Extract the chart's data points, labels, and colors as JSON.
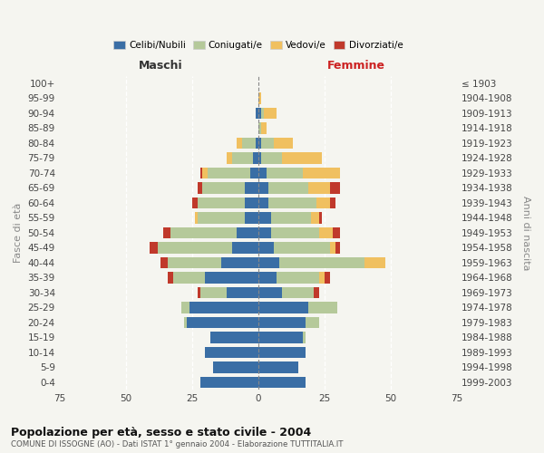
{
  "age_groups": [
    "0-4",
    "5-9",
    "10-14",
    "15-19",
    "20-24",
    "25-29",
    "30-34",
    "35-39",
    "40-44",
    "45-49",
    "50-54",
    "55-59",
    "60-64",
    "65-69",
    "70-74",
    "75-79",
    "80-84",
    "85-89",
    "90-94",
    "95-99",
    "100+"
  ],
  "birth_years": [
    "1999-2003",
    "1994-1998",
    "1989-1993",
    "1984-1988",
    "1979-1983",
    "1974-1978",
    "1969-1973",
    "1964-1968",
    "1959-1963",
    "1954-1958",
    "1949-1953",
    "1944-1948",
    "1939-1943",
    "1934-1938",
    "1929-1933",
    "1924-1928",
    "1919-1923",
    "1914-1918",
    "1909-1913",
    "1904-1908",
    "≤ 1903"
  ],
  "maschi": {
    "celibi": [
      22,
      17,
      20,
      18,
      27,
      26,
      12,
      20,
      14,
      10,
      8,
      5,
      5,
      5,
      3,
      2,
      1,
      0,
      1,
      0,
      0
    ],
    "coniugati": [
      0,
      0,
      0,
      0,
      1,
      3,
      10,
      12,
      20,
      28,
      25,
      18,
      18,
      16,
      16,
      8,
      5,
      0,
      0,
      0,
      0
    ],
    "vedovi": [
      0,
      0,
      0,
      0,
      0,
      0,
      0,
      0,
      0,
      0,
      0,
      1,
      0,
      0,
      2,
      2,
      2,
      0,
      0,
      0,
      0
    ],
    "divorziati": [
      0,
      0,
      0,
      0,
      0,
      0,
      1,
      2,
      3,
      3,
      3,
      0,
      2,
      2,
      1,
      0,
      0,
      0,
      0,
      0,
      0
    ]
  },
  "femmine": {
    "nubili": [
      18,
      15,
      18,
      17,
      18,
      19,
      9,
      7,
      8,
      6,
      5,
      5,
      4,
      4,
      3,
      1,
      1,
      0,
      1,
      0,
      0
    ],
    "coniugate": [
      0,
      0,
      0,
      1,
      5,
      11,
      12,
      16,
      32,
      21,
      18,
      15,
      18,
      15,
      14,
      8,
      5,
      1,
      1,
      0,
      0
    ],
    "vedove": [
      0,
      0,
      0,
      0,
      0,
      0,
      0,
      2,
      8,
      2,
      5,
      3,
      5,
      8,
      14,
      15,
      7,
      2,
      5,
      1,
      0
    ],
    "divorziate": [
      0,
      0,
      0,
      0,
      0,
      0,
      2,
      2,
      0,
      2,
      3,
      1,
      2,
      4,
      0,
      0,
      0,
      0,
      0,
      0,
      0
    ]
  },
  "colors": {
    "celibi": "#3a6ea5",
    "coniugati": "#b5c99a",
    "vedovi": "#f0c060",
    "divorziati": "#c0392b"
  },
  "xlim": 75,
  "title": "Popolazione per età, sesso e stato civile - 2004",
  "subtitle": "COMUNE DI ISSOGNE (AO) - Dati ISTAT 1° gennaio 2004 - Elaborazione TUTTITALIA.IT",
  "ylabel_left": "Fasce di età",
  "ylabel_right": "Anni di nascita",
  "xlabel_maschi": "Maschi",
  "xlabel_femmine": "Femmine",
  "legend_labels": [
    "Celibi/Nubili",
    "Coniugati/e",
    "Vedovi/e",
    "Divorziati/e"
  ],
  "bg_color": "#f5f5f0"
}
